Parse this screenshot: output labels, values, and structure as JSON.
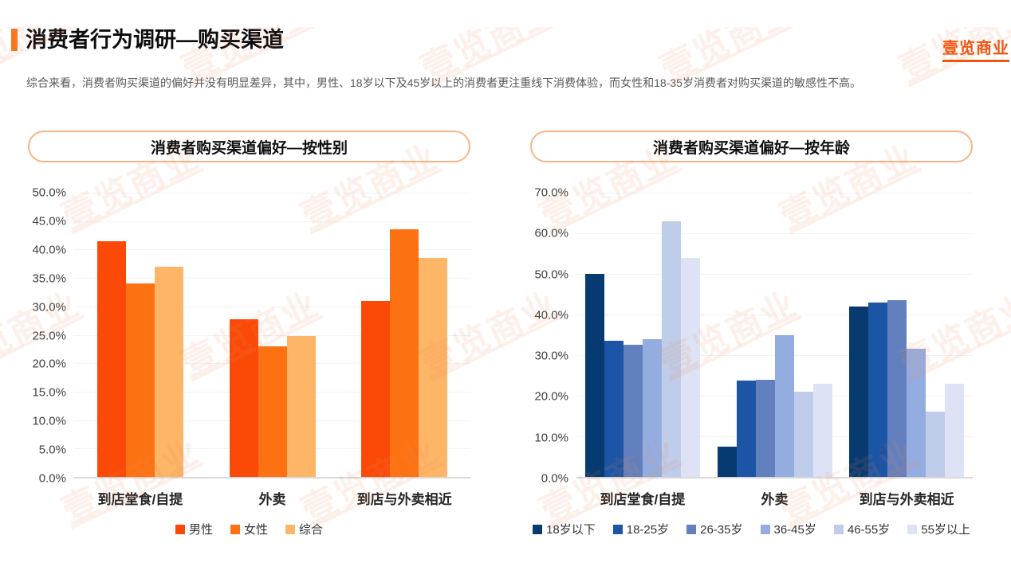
{
  "brand": {
    "logo_text": "壹览商业",
    "watermark_text": "壹览商业",
    "logo_color": "#F4530E",
    "accent_color": "#F8771C"
  },
  "header": {
    "title": "消费者行为调研—购买渠道",
    "subtitle": "综合来看，消费者购买渠道的偏好并没有明显差异，其中，男性、18岁以下及45岁以上的消费者更注重线下消费体验，而女性和18-35岁消费者对购买渠道的敏感性不高。"
  },
  "chart_data": [
    {
      "type": "bar",
      "title": "消费者购买渠道偏好—按性别",
      "categories": [
        "到店堂食/自提",
        "外卖",
        "到店与外卖相近"
      ],
      "series": [
        {
          "name": "男性",
          "color": "#FB4A08",
          "values": [
            41.5,
            27.7,
            31.0
          ]
        },
        {
          "name": "女性",
          "color": "#FC7213",
          "values": [
            34.0,
            23.0,
            43.5
          ]
        },
        {
          "name": "综合",
          "color": "#FDB567",
          "values": [
            37.0,
            24.8,
            38.5
          ]
        }
      ],
      "xlabel": "",
      "ylabel": "",
      "ylim": [
        0,
        50
      ],
      "ytick_step": 5,
      "ytick_format": "percent-one-decimal",
      "grid": true,
      "legend_position": "bottom"
    },
    {
      "type": "bar",
      "title": "消费者购买渠道偏好—按年龄",
      "categories": [
        "到店堂食/自提",
        "外卖",
        "到店与外卖相近"
      ],
      "series": [
        {
          "name": "18岁以下",
          "color": "#073A71",
          "values": [
            50.0,
            7.5,
            42.0
          ]
        },
        {
          "name": "18-25岁",
          "color": "#1C55A5",
          "values": [
            33.5,
            23.8,
            43.0
          ]
        },
        {
          "name": "26-35岁",
          "color": "#6280BD",
          "values": [
            32.5,
            24.0,
            43.5
          ]
        },
        {
          "name": "36-45岁",
          "color": "#94ADE0",
          "values": [
            34.0,
            35.0,
            31.5
          ]
        },
        {
          "name": "46-55岁",
          "color": "#BFCCEA",
          "values": [
            63.0,
            21.0,
            16.0
          ]
        },
        {
          "name": "55岁以上",
          "color": "#DDE3F4",
          "values": [
            54.0,
            23.0,
            23.0
          ]
        }
      ],
      "xlabel": "",
      "ylabel": "",
      "ylim": [
        0,
        70
      ],
      "ytick_step": 10,
      "ytick_format": "percent-one-decimal",
      "grid": true,
      "legend_position": "bottom"
    }
  ]
}
